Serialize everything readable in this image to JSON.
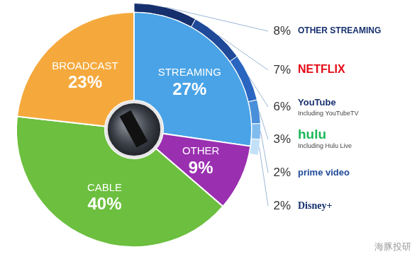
{
  "chart_data": {
    "type": "doughnut",
    "categories": [
      "STREAMING",
      "OTHER",
      "CABLE",
      "BROADCAST"
    ],
    "values": [
      27,
      9,
      40,
      23
    ],
    "value_labels": [
      "27%",
      "9%",
      "40%",
      "23%"
    ],
    "colors": [
      "#4aa3e6",
      "#9a2fb0",
      "#6cbf3f",
      "#f5a93c"
    ],
    "data_labels": true,
    "legend": false,
    "breakdown": {
      "parent": "STREAMING",
      "categories": [
        "OTHER STREAMING",
        "NETFLIX",
        "YouTube",
        "hulu",
        "prime video",
        "Disney+"
      ],
      "sublabels": [
        null,
        null,
        "Including YouTubeTV",
        "Including Hulu Live",
        null,
        null
      ],
      "values": [
        8,
        7,
        6,
        3,
        2,
        2
      ],
      "value_labels": [
        "8%",
        "7%",
        "6%",
        "3%",
        "2%",
        "2%"
      ],
      "colors": [
        "#16306e",
        "#1f4a9a",
        "#2a66c0",
        "#4a8fd9",
        "#80bbee",
        "#c2e0f8"
      ]
    },
    "watermark": "海豚投研"
  }
}
